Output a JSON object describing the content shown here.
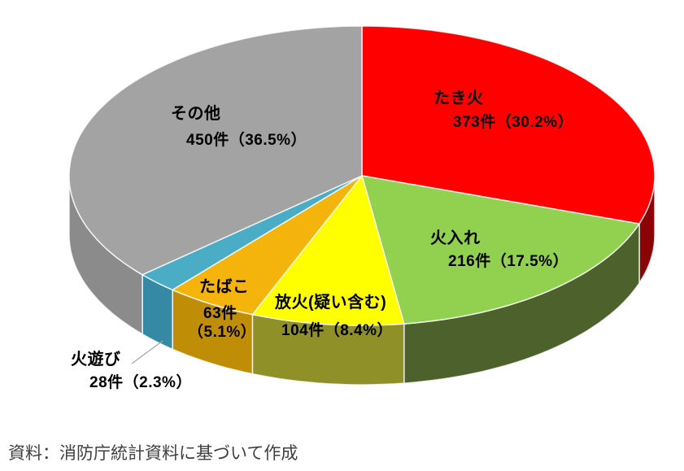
{
  "chart_data": {
    "type": "pie",
    "style": "3d",
    "start_angle_deg": 0,
    "direction": "clockwise",
    "unit": "件",
    "slices": [
      {
        "key": "takibi",
        "label": "たき火",
        "value": 373,
        "pct": 30.2,
        "color": "#FE0000",
        "side_color": "#8C0306",
        "lines": [
          "たき火",
          "373件（30.2%）"
        ]
      },
      {
        "key": "hiire",
        "label": "火入れ",
        "value": 216,
        "pct": 17.5,
        "color": "#92D050",
        "side_color": "#4C612B",
        "lines": [
          "火入れ",
          "216件（17.5%）"
        ]
      },
      {
        "key": "houka",
        "label": "放火(疑い含む)",
        "value": 104,
        "pct": 8.4,
        "color": "#FFFF00",
        "side_color": "#8F9027",
        "lines": [
          "放火(疑い含む)",
          "104件（8.4%）"
        ]
      },
      {
        "key": "tabako",
        "label": "たばこ",
        "value": 63,
        "pct": 5.1,
        "color": "#F4B40B",
        "side_color": "#BF8D06",
        "lines": [
          "たばこ",
          "63件",
          "（5.1%）"
        ]
      },
      {
        "key": "hiasobi",
        "label": "火遊び",
        "value": 28,
        "pct": 2.3,
        "color": "#4BACC6",
        "side_color": "#3589A5",
        "lines": [
          "火遊び",
          "28件（2.3%）"
        ]
      },
      {
        "key": "sonota",
        "label": "その他",
        "value": 450,
        "pct": 36.5,
        "color": "#A3A3A3",
        "side_color": "#8B8B8B",
        "lines": [
          "その他",
          "450件（36.5%）"
        ]
      }
    ]
  },
  "source": {
    "text": "資料：消防庁統計資料に基づいて作成"
  }
}
